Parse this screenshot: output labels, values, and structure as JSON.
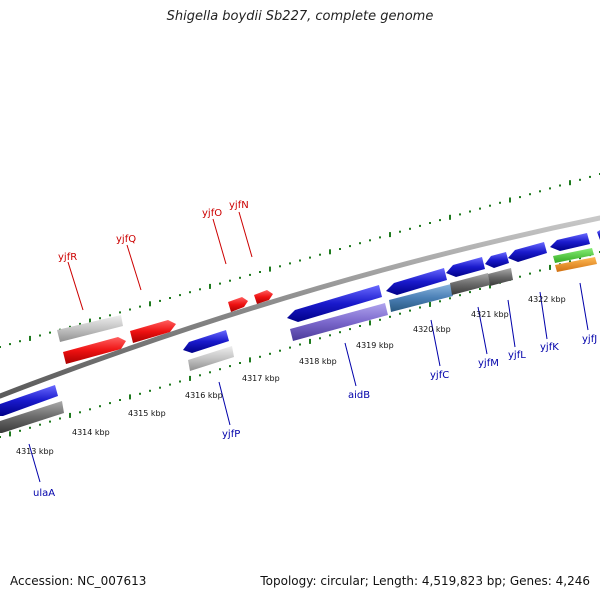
{
  "title": "Shigella boydii Sb227, complete genome",
  "footer": {
    "accession": "Accession: NC_007613",
    "topology": "Topology: circular; Length: 4,519,823 bp; Genes: 4,246"
  },
  "colors": {
    "backbone": "#8a8a8a",
    "tick": "#1e7a1e",
    "label_forward": "#cc0000",
    "label_reverse": "#0000aa",
    "gene_red": "#ee1111",
    "gene_blue": "#1a1acc",
    "gene_grey_light": "#bfbfbf",
    "gene_grey_dark": "#6a6a6a",
    "gene_purple": "#7b68cc",
    "gene_steel": "#4a7fb5",
    "gene_green": "#44bb33",
    "gene_orange": "#e88a1a"
  },
  "kbp_labels": [
    "4313 kbp",
    "4314 kbp",
    "4315 kbp",
    "4316 kbp",
    "4317 kbp",
    "4318 kbp",
    "4319 kbp",
    "4320 kbp",
    "4321 kbp",
    "4322 kbp"
  ],
  "gene_labels": [
    "yjfR",
    "yjfQ",
    "yjfO",
    "yjfN",
    "ulaA",
    "yjfP",
    "aidB",
    "yjfC",
    "yjfM",
    "yjfL",
    "yjfK",
    "yjfJ"
  ]
}
